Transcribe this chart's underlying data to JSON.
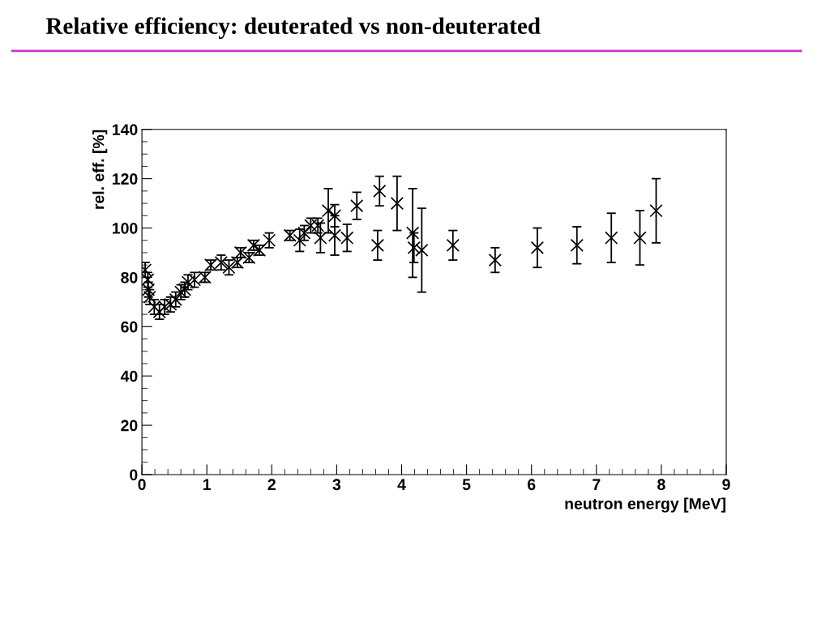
{
  "chart_data": {
    "type": "scatter",
    "title": "Relative efficiency: deuterated vs non-deuterated",
    "xlabel": "neutron energy [MeV]",
    "ylabel": "rel. eff. [%]",
    "x": [
      0.05,
      0.09,
      0.1,
      0.12,
      0.19,
      0.27,
      0.35,
      0.44,
      0.52,
      0.6,
      0.66,
      0.71,
      0.81,
      0.97,
      1.06,
      1.22,
      1.34,
      1.47,
      1.52,
      1.65,
      1.72,
      1.81,
      1.96,
      2.28,
      2.43,
      2.5,
      2.6,
      2.71,
      2.75,
      2.87,
      2.97,
      2.97,
      3.16,
      3.31,
      3.63,
      3.66,
      3.93,
      4.17,
      4.19,
      4.31,
      4.79,
      5.44,
      6.09,
      6.7,
      7.23,
      7.67,
      7.92
    ],
    "values": [
      83,
      79,
      75,
      72,
      68,
      66,
      68,
      69,
      71,
      74,
      75,
      78,
      79,
      80,
      85,
      86,
      84,
      86,
      90,
      88,
      93,
      91,
      95,
      97,
      95,
      98,
      101,
      101,
      96,
      107,
      105,
      97,
      96,
      109,
      93,
      115,
      110,
      98,
      92,
      91,
      93,
      87,
      92,
      93,
      96,
      96,
      107
    ],
    "errors": [
      3,
      3,
      3,
      3,
      3,
      3,
      3,
      3,
      3,
      3,
      3,
      3,
      3,
      2,
      2,
      3,
      3,
      2,
      2,
      2,
      2,
      2,
      3,
      2,
      4.5,
      3,
      3,
      3,
      6,
      9,
      4.5,
      8,
      5.5,
      5.5,
      6,
      6,
      11,
      18,
      6,
      17,
      6,
      5,
      8,
      7.5,
      10,
      11,
      13
    ],
    "color": "#000000",
    "marker": "cross",
    "xlim": [
      0,
      9
    ],
    "xticks": [
      0,
      1,
      2,
      3,
      4,
      5,
      6,
      7,
      8,
      9
    ],
    "ylim": [
      0,
      140
    ],
    "yticks": [
      0,
      20,
      40,
      60,
      80,
      100,
      120,
      140
    ],
    "grid": false,
    "legend": false
  }
}
